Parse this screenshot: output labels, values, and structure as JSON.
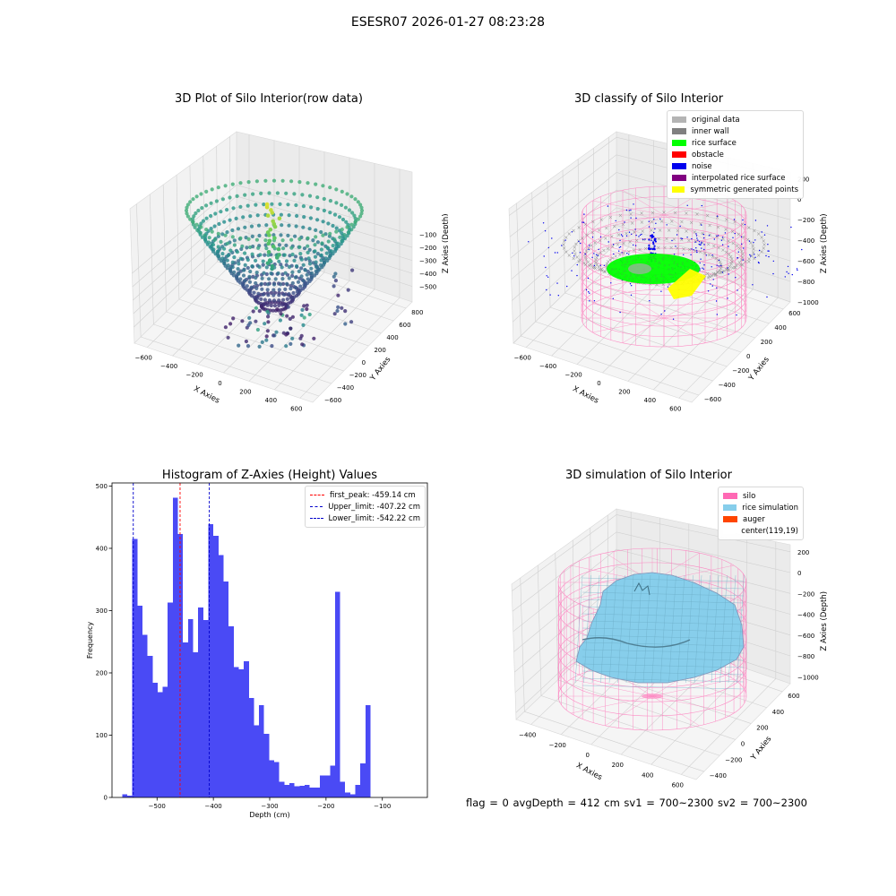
{
  "suptitle": "ESESR07 2026-01-27 08:23:28",
  "status_line": "flag = 0     avgDepth = 412 cm  sv1 = 700~2300  sv2 = 700~2300",
  "chart_data": [
    {
      "type": "scatter3d",
      "title": "3D Plot of Silo Interior(row data)",
      "xlabel": "X Axies",
      "ylabel": "Y Axies",
      "zlabel": "Z Axies (Depth)",
      "x_ticks": [
        "−600",
        "−400",
        "−200",
        "0",
        "200",
        "400",
        "600"
      ],
      "y_ticks": [
        "−600",
        "−400",
        "−200",
        "0",
        "200",
        "400",
        "600",
        "800"
      ],
      "z_ticks": [
        "−100",
        "−200",
        "−300",
        "−400",
        "−500"
      ],
      "xlim": [
        -700,
        700
      ],
      "ylim": [
        -700,
        850
      ],
      "zlim": [
        -560,
        -40
      ],
      "colormap": "viridis",
      "surface": {
        "rim_radius": 370,
        "rim_depth": -235,
        "center_depth": -515,
        "peak_depth": -60
      }
    },
    {
      "type": "scatter3d",
      "title": "3D classify of Silo Interior",
      "xlabel": "X Axies",
      "ylabel": "Y Axies",
      "zlabel": "Z Axies (Depth)",
      "x_ticks": [
        "−600",
        "−400",
        "−200",
        "0",
        "200",
        "400",
        "600"
      ],
      "y_ticks": [
        "−600",
        "−400",
        "−200",
        "0",
        "200",
        "400",
        "600"
      ],
      "z_ticks": [
        "200",
        "0",
        "−200",
        "−400",
        "−600",
        "−800",
        "−1000"
      ],
      "xlim": [
        -700,
        700
      ],
      "ylim": [
        -700,
        700
      ],
      "zlim": [
        -1100,
        300
      ],
      "legend": [
        {
          "label": "original data",
          "color": "#b4b4b4"
        },
        {
          "label": "inner wall",
          "color": "#808080"
        },
        {
          "label": "rice surface",
          "color": "#00ff00"
        },
        {
          "label": "obstacle",
          "color": "#ff0000"
        },
        {
          "label": "noise",
          "color": "#0000ee"
        },
        {
          "label": "interpolated rice surface",
          "color": "#800080"
        },
        {
          "label": "symmetric generated points",
          "color": "#ffff00"
        }
      ],
      "silo": {
        "radius": 560,
        "top": 0,
        "bottom": -1000,
        "color": "#ff69b4"
      }
    },
    {
      "type": "histogram",
      "title": "Histogram of Z-Axies (Height) Values",
      "xlabel": "Depth (cm)",
      "ylabel": "Frequency",
      "bar_color": "#4a4af5",
      "bin_start": -562,
      "bin_width": 9,
      "counts": [
        5,
        3,
        415,
        308,
        261,
        227,
        184,
        169,
        178,
        313,
        481,
        423,
        249,
        286,
        233,
        305,
        285,
        439,
        420,
        389,
        347,
        275,
        209,
        206,
        219,
        160,
        116,
        148,
        102,
        60,
        57,
        25,
        20,
        23,
        18,
        19,
        20,
        16,
        16,
        35,
        35,
        51,
        330,
        25,
        8,
        5,
        20,
        55,
        148
      ],
      "x_ticks": [
        -500,
        -400,
        -300,
        -200,
        -100
      ],
      "x_tick_labels": [
        "−500",
        "−400",
        "−300",
        "−200",
        "−100"
      ],
      "y_ticks": [
        0,
        100,
        200,
        300,
        400,
        500
      ],
      "xlim": [
        -580,
        -20
      ],
      "ylim": [
        0,
        505
      ],
      "vlines": [
        {
          "label": "first_peak: -459.14 cm",
          "x": -459.14,
          "color": "#ff0000"
        },
        {
          "label": "Upper_limit: -407.22 cm",
          "x": -407.22,
          "color": "#0000cc"
        },
        {
          "label": "Lower_limit: -542.22 cm",
          "x": -542.22,
          "color": "#0000cc"
        }
      ]
    },
    {
      "type": "surface3d",
      "title": "3D simulation of Silo Interior",
      "xlabel": "X Axies",
      "ylabel": "Y Axies",
      "zlabel": "Z Axies (Depth)",
      "x_ticks": [
        "−400",
        "−200",
        "0",
        "200",
        "400",
        "600"
      ],
      "y_ticks": [
        "−400",
        "−200",
        "0",
        "200",
        "400",
        "600"
      ],
      "z_ticks": [
        "200",
        "0",
        "−200",
        "−400",
        "−600",
        "−800",
        "−1000"
      ],
      "xlim": [
        -600,
        700
      ],
      "ylim": [
        -600,
        700
      ],
      "zlim": [
        -1100,
        300
      ],
      "legend": [
        {
          "label": "silo",
          "color": "#ff69b4"
        },
        {
          "label": "rice simulation",
          "color": "#87ceeb"
        },
        {
          "label": "auger",
          "color": "#ff4500"
        },
        {
          "label": "center(119,19)",
          "color": "#ffffff"
        }
      ],
      "silo": {
        "radius": 560,
        "top": 0,
        "bottom": -1000,
        "color": "#ff69b4"
      },
      "surface_color": "#87ceeb"
    }
  ]
}
